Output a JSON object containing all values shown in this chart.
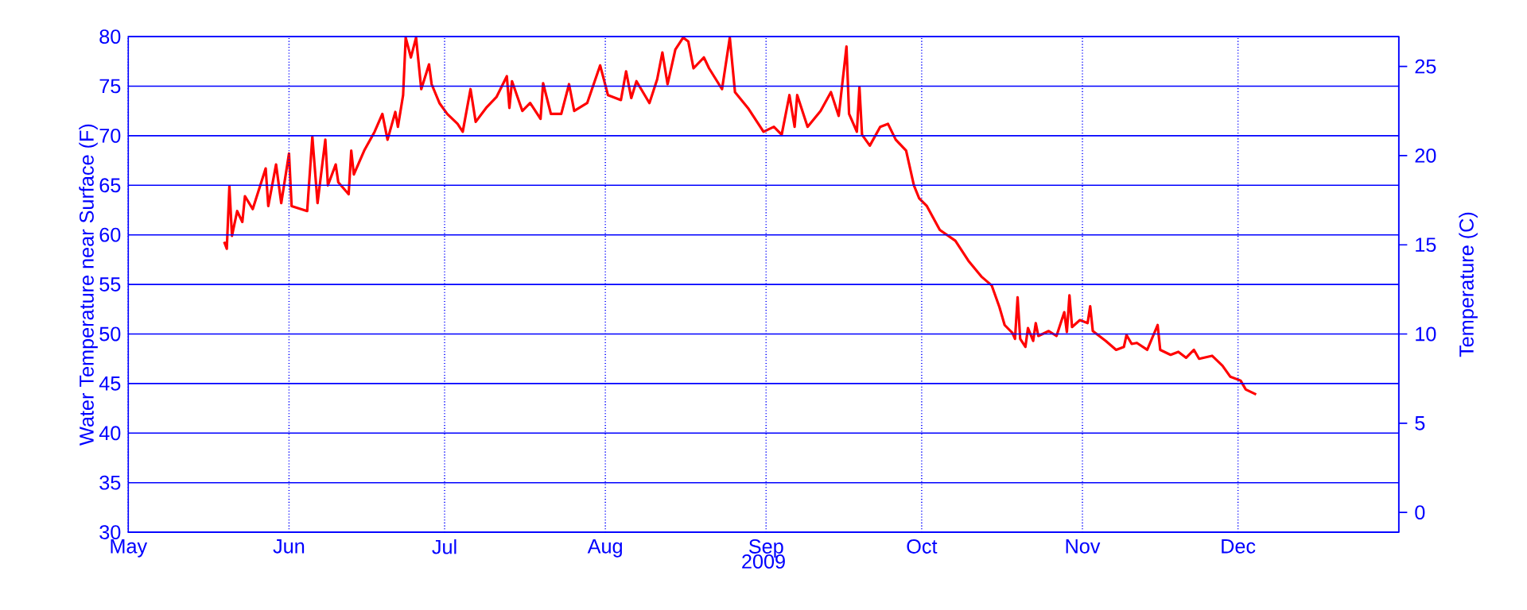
{
  "chart_data": {
    "type": "line",
    "xlabel": "2009",
    "ylabel": "Water Temperature near Surface (F)",
    "y2label": "Temperature (C)",
    "xlim": [
      "2009-05-01",
      "2010-01-01"
    ],
    "xticks": [
      {
        "value": "2009-05-01",
        "label": "May"
      },
      {
        "value": "2009-06-01",
        "label": "Jun"
      },
      {
        "value": "2009-07-01",
        "label": "Jul"
      },
      {
        "value": "2009-08-01",
        "label": "Aug"
      },
      {
        "value": "2009-09-01",
        "label": "Sep"
      },
      {
        "value": "2009-10-01",
        "label": "Oct"
      },
      {
        "value": "2009-11-01",
        "label": "Nov"
      },
      {
        "value": "2009-12-01",
        "label": "Dec"
      }
    ],
    "ylim": [
      30,
      80
    ],
    "yticks": [
      30,
      35,
      40,
      45,
      50,
      55,
      60,
      65,
      70,
      75,
      80
    ],
    "y2lim": [
      -1.11,
      26.67
    ],
    "y2ticks": [
      0,
      5,
      10,
      15,
      20,
      25
    ],
    "grid": true,
    "series": [
      {
        "color": "#ff0000",
        "x": [
          "2009-05-19T12:00",
          "2009-05-20",
          "2009-05-20T12:00",
          "2009-05-21",
          "2009-05-22",
          "2009-05-23",
          "2009-05-23T12:00",
          "2009-05-25",
          "2009-05-27T12:00",
          "2009-05-28",
          "2009-05-29T12:00",
          "2009-05-30T12:00",
          "2009-06-01",
          "2009-06-01T12:00",
          "2009-06-04T12:00",
          "2009-06-05T12:00",
          "2009-06-06T12:00",
          "2009-06-08",
          "2009-06-08T12:00",
          "2009-06-10",
          "2009-06-10T12:00",
          "2009-06-12T12:00",
          "2009-06-13",
          "2009-06-13T12:00",
          "2009-06-15T12:00",
          "2009-06-17T12:00",
          "2009-06-19",
          "2009-06-20",
          "2009-06-21T12:00",
          "2009-06-22",
          "2009-06-23",
          "2009-06-23T12:00",
          "2009-06-24T12:00",
          "2009-06-25T12:00",
          "2009-06-26T12:00",
          "2009-06-28",
          "2009-06-28T12:00",
          "2009-06-30",
          "2009-07-01T12:00",
          "2009-07-03T12:00",
          "2009-07-04T12:00",
          "2009-07-06",
          "2009-07-07",
          "2009-07-09",
          "2009-07-11",
          "2009-07-13",
          "2009-07-13T12:00",
          "2009-07-14",
          "2009-07-16",
          "2009-07-17T12:00",
          "2009-07-19T12:00",
          "2009-07-20",
          "2009-07-21T12:00",
          "2009-07-23T12:00",
          "2009-07-25",
          "2009-07-26",
          "2009-07-28T12:00",
          "2009-07-31",
          "2009-08-01T12:00",
          "2009-08-04",
          "2009-08-05",
          "2009-08-06",
          "2009-08-07",
          "2009-08-09T12:00",
          "2009-08-11",
          "2009-08-12",
          "2009-08-13",
          "2009-08-14T12:00",
          "2009-08-16",
          "2009-08-17",
          "2009-08-18",
          "2009-08-20",
          "2009-08-21",
          "2009-08-23T12:00",
          "2009-08-25",
          "2009-08-26",
          "2009-08-28T12:00",
          "2009-08-31T12:00",
          "2009-09-02T12:00",
          "2009-09-04",
          "2009-09-05T12:00",
          "2009-09-06T12:00",
          "2009-09-07",
          "2009-09-09",
          "2009-09-11T12:00",
          "2009-09-13T12:00",
          "2009-09-15",
          "2009-09-16T12:00",
          "2009-09-17",
          "2009-09-18T12:00",
          "2009-09-19",
          "2009-09-19T12:00",
          "2009-09-21",
          "2009-09-23",
          "2009-09-24T12:00",
          "2009-09-26",
          "2009-09-28",
          "2009-09-29T12:00",
          "2009-09-30T12:00",
          "2009-10-02",
          "2009-10-04T12:00",
          "2009-10-07T12:00",
          "2009-10-10",
          "2009-10-12T12:00",
          "2009-10-14T12:00",
          "2009-10-16",
          "2009-10-17",
          "2009-10-18T12:00",
          "2009-10-19",
          "2009-10-19T12:00",
          "2009-10-20",
          "2009-10-21",
          "2009-10-21T12:00",
          "2009-10-22T12:00",
          "2009-10-23",
          "2009-10-23T12:00",
          "2009-10-25T12:00",
          "2009-10-27",
          "2009-10-28T12:00",
          "2009-10-29",
          "2009-10-29T12:00",
          "2009-10-30",
          "2009-10-31T12:00",
          "2009-11-02",
          "2009-11-02T12:00",
          "2009-11-03",
          "2009-11-05T12:00",
          "2009-11-07T12:00",
          "2009-11-09",
          "2009-11-09T12:00",
          "2009-11-10T12:00",
          "2009-11-11T12:00",
          "2009-11-13T12:00",
          "2009-11-15T12:00",
          "2009-11-16",
          "2009-11-18",
          "2009-11-19T12:00",
          "2009-11-21",
          "2009-11-22T12:00",
          "2009-11-23T12:00",
          "2009-11-26",
          "2009-11-28",
          "2009-11-29T12:00",
          "2009-12-01T12:00",
          "2009-12-02T12:00",
          "2009-12-04T12:00"
        ],
        "values": [
          59.3,
          58.6,
          64.9,
          59.9,
          62.4,
          61.3,
          63.9,
          62.6,
          66.7,
          62.9,
          67.1,
          63.2,
          68.2,
          62.9,
          62.4,
          69.9,
          63.2,
          69.6,
          65.0,
          67.1,
          65.3,
          64.1,
          68.5,
          66.1,
          68.5,
          70.4,
          72.2,
          69.6,
          72.4,
          70.9,
          74.1,
          79.9,
          77.9,
          79.9,
          74.7,
          77.2,
          75.2,
          73.3,
          72.2,
          71.2,
          70.4,
          74.7,
          71.4,
          72.8,
          73.9,
          76.0,
          72.8,
          75.5,
          72.5,
          73.3,
          71.7,
          75.3,
          72.2,
          72.2,
          75.2,
          72.5,
          73.3,
          77.1,
          74.1,
          73.6,
          76.5,
          73.8,
          75.5,
          73.3,
          75.7,
          78.4,
          75.2,
          78.7,
          79.9,
          79.5,
          76.8,
          77.9,
          76.8,
          74.7,
          79.9,
          74.4,
          72.8,
          70.4,
          70.9,
          70.1,
          74.1,
          70.9,
          74.1,
          70.9,
          72.5,
          74.4,
          72.0,
          79.0,
          72.2,
          70.4,
          74.9,
          70.1,
          69.0,
          70.9,
          71.2,
          69.6,
          68.5,
          65.0,
          63.7,
          62.9,
          60.5,
          59.4,
          57.4,
          55.8,
          54.9,
          52.7,
          50.9,
          50.1,
          49.5,
          53.7,
          49.5,
          48.7,
          50.6,
          49.3,
          51.1,
          49.8,
          50.3,
          49.8,
          52.2,
          50.2,
          53.9,
          50.7,
          51.4,
          51.1,
          52.8,
          50.3,
          49.3,
          48.4,
          48.7,
          49.9,
          49.0,
          49.1,
          48.4,
          50.9,
          48.4,
          47.9,
          48.2,
          47.6,
          48.4,
          47.5,
          47.8,
          46.8,
          45.7,
          45.3,
          44.4,
          43.9
        ]
      }
    ]
  }
}
